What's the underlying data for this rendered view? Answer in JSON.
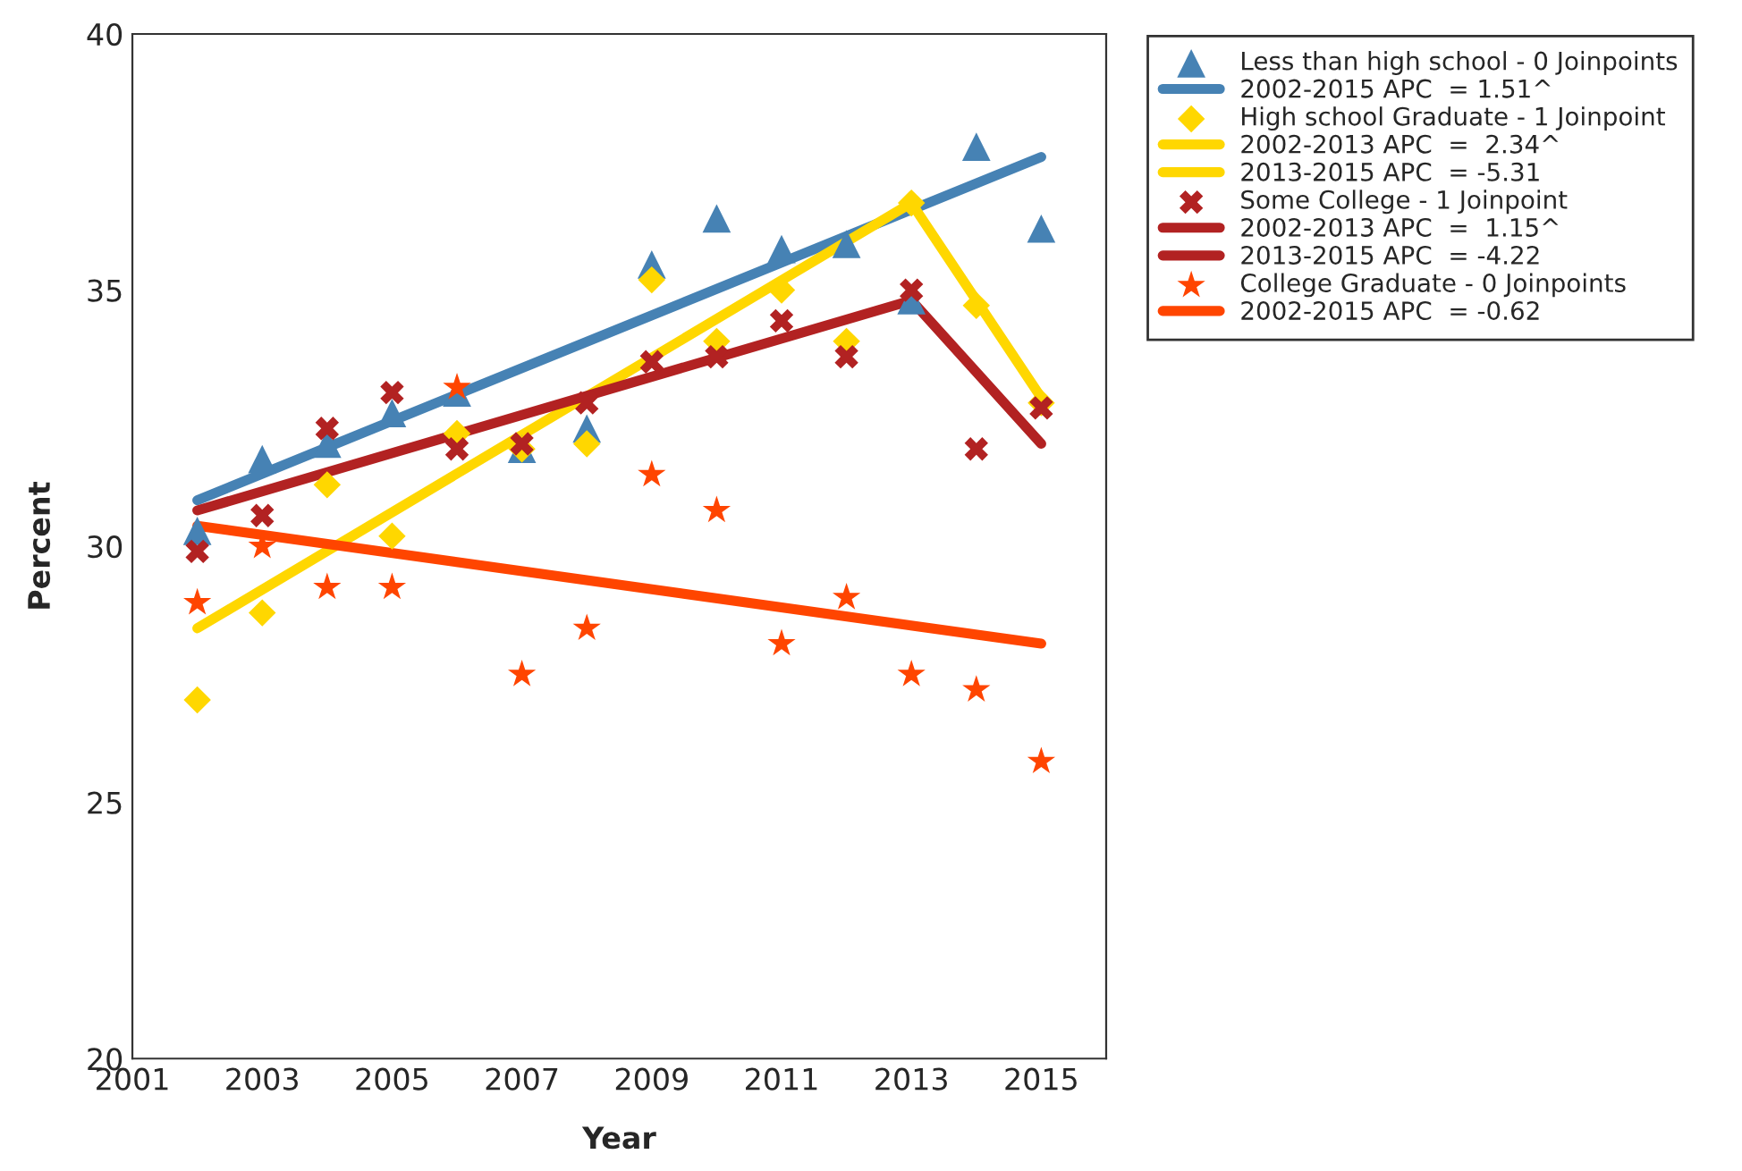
{
  "chart_data": {
    "type": "scatter",
    "xlabel": "Year",
    "ylabel": "Percent",
    "xlim": [
      2001,
      2016
    ],
    "xticks": [
      2001,
      2003,
      2005,
      2007,
      2009,
      2011,
      2013,
      2015
    ],
    "ylim": [
      20,
      40
    ],
    "yticks": [
      20,
      25,
      30,
      35,
      40
    ],
    "grid": false,
    "legend": "top right",
    "series": [
      {
        "name": "Less than high school - 0 Joinpoints",
        "marker": "triangle",
        "color": "#4682b4",
        "x": [
          2002,
          2003,
          2004,
          2005,
          2006,
          2007,
          2008,
          2009,
          2010,
          2011,
          2012,
          2013,
          2014,
          2015
        ],
        "values": [
          30.3,
          31.7,
          32.0,
          32.6,
          33.0,
          31.9,
          32.3,
          35.5,
          36.4,
          35.8,
          35.9,
          34.8,
          37.8,
          36.2
        ]
      },
      {
        "name": "2002-2015 APC  = 1.51^",
        "type": "line",
        "line_style": "solid",
        "color": "#4682b4",
        "x": [
          2002,
          2015
        ],
        "values": [
          30.9,
          37.6
        ]
      },
      {
        "name": "High school Graduate - 1 Joinpoint",
        "marker": "diamond",
        "color": "#ffd700",
        "x": [
          2002,
          2003,
          2004,
          2005,
          2006,
          2007,
          2008,
          2009,
          2010,
          2011,
          2012,
          2013,
          2014,
          2015
        ],
        "values": [
          27.0,
          28.7,
          31.2,
          30.2,
          32.2,
          31.9,
          32.0,
          35.2,
          34.0,
          35.0,
          34.0,
          36.7,
          34.7,
          32.8
        ]
      },
      {
        "name": "2002-2013 APC  =  2.34^",
        "type": "line",
        "line_style": "solid",
        "color": "#ffd700",
        "x": [
          2002,
          2013
        ],
        "values": [
          28.4,
          36.7
        ]
      },
      {
        "name": "2013-2015 APC  = -5.31",
        "type": "line",
        "line_style": "solid",
        "color": "#ffd700",
        "x": [
          2013,
          2015
        ],
        "values": [
          36.7,
          32.9
        ]
      },
      {
        "name": "Some College - 1 Joinpoint",
        "marker": "cross",
        "color": "#b22222",
        "x": [
          2002,
          2003,
          2004,
          2005,
          2006,
          2007,
          2008,
          2009,
          2010,
          2011,
          2012,
          2013,
          2014,
          2015
        ],
        "values": [
          29.9,
          30.6,
          32.3,
          33.0,
          31.9,
          32.0,
          32.8,
          33.6,
          33.7,
          34.4,
          33.7,
          35.0,
          31.9,
          32.7
        ]
      },
      {
        "name": "2002-2013 APC  =  1.15^",
        "type": "line",
        "line_style": "solid",
        "color": "#b22222",
        "x": [
          2002,
          2013
        ],
        "values": [
          30.7,
          34.8
        ]
      },
      {
        "name": "2013-2015 APC  = -4.22",
        "type": "line",
        "line_style": "solid",
        "color": "#b22222",
        "x": [
          2013,
          2015
        ],
        "values": [
          34.8,
          32.0
        ]
      },
      {
        "name": "College Graduate - 0 Joinpoints",
        "marker": "star",
        "color": "#ff4500",
        "x": [
          2002,
          2003,
          2004,
          2005,
          2006,
          2007,
          2008,
          2009,
          2010,
          2011,
          2012,
          2013,
          2014,
          2015
        ],
        "values": [
          28.9,
          30.0,
          29.2,
          29.2,
          33.1,
          27.5,
          28.4,
          31.4,
          30.7,
          28.1,
          29.0,
          27.5,
          27.2,
          25.8
        ]
      },
      {
        "name": "2002-2015 APC  = -0.62",
        "type": "line",
        "line_style": "solid",
        "color": "#ff4500",
        "x": [
          2002,
          2015
        ],
        "values": [
          30.4,
          28.1
        ]
      }
    ]
  }
}
